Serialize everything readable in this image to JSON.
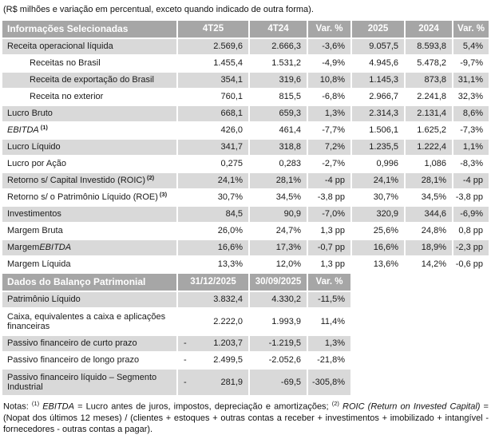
{
  "top_note": "(R$ milhões e variação em percentual, exceto quando indicado de outra forma).",
  "colors": {
    "header_bg": "#a6a6a6",
    "header_text": "#ffffff",
    "row_shade": "#d9d9d9",
    "body_text": "#1a1a1a"
  },
  "section1": {
    "title": "Informações Selecionadas",
    "columns": [
      "4T25",
      "4T24",
      "Var. %",
      "2025",
      "2024",
      "Var. %"
    ],
    "rows": [
      {
        "parts": [
          {
            "t": "Receita operacional líquida"
          }
        ],
        "values": [
          "2.569,6",
          "2.666,3",
          "-3,6%",
          "9.057,5",
          "8.593,8",
          "5,4%"
        ],
        "shade": true
      },
      {
        "parts": [
          {
            "t": "Receitas no Brasil"
          }
        ],
        "indent": true,
        "values": [
          "1.455,4",
          "1.531,2",
          "-4,9%",
          "4.945,6",
          "5.478,2",
          "-9,7%"
        ]
      },
      {
        "parts": [
          {
            "t": "Receita de exportação do Brasil"
          }
        ],
        "indent": true,
        "values": [
          "354,1",
          "319,6",
          "10,8%",
          "1.145,3",
          "873,8",
          "31,1%"
        ],
        "shade": true
      },
      {
        "parts": [
          {
            "t": "Receita no exterior"
          }
        ],
        "indent": true,
        "values": [
          "760,1",
          "815,5",
          "-6,8%",
          "2.966,7",
          "2.241,8",
          "32,3%"
        ]
      },
      {
        "parts": [
          {
            "t": "Lucro Bruto"
          }
        ],
        "values": [
          "668,1",
          "659,3",
          "1,3%",
          "2.314,3",
          "2.131,4",
          "8,6%"
        ],
        "shade": true
      },
      {
        "parts": [
          {
            "t": "EBITDA",
            "i": true
          }
        ],
        "sup": "(1)",
        "values": [
          "426,0",
          "461,4",
          "-7,7%",
          "1.506,1",
          "1.625,2",
          "-7,3%"
        ]
      },
      {
        "parts": [
          {
            "t": "Lucro Líquido"
          }
        ],
        "values": [
          "341,7",
          "318,8",
          "7,2%",
          "1.235,5",
          "1.222,4",
          "1,1%"
        ],
        "shade": true
      },
      {
        "parts": [
          {
            "t": "Lucro por Ação"
          }
        ],
        "values": [
          "0,275",
          "0,283",
          "-2,7%",
          "0,996",
          "1,086",
          "-8,3%"
        ]
      },
      {
        "parts": [
          {
            "t": "Retorno s/ Capital Investido (ROIC)"
          }
        ],
        "sup": "(2)",
        "values": [
          "24,1%",
          "28,1%",
          "-4 pp",
          "24,1%",
          "28,1%",
          "-4 pp"
        ],
        "shade": true
      },
      {
        "parts": [
          {
            "t": "Retorno s/ o Patrimônio Líquido (ROE)"
          }
        ],
        "sup": "(3)",
        "values": [
          "30,7%",
          "34,5%",
          "-3,8 pp",
          "30,7%",
          "34,5%",
          "-3,8 pp"
        ]
      },
      {
        "parts": [
          {
            "t": "Investimentos"
          }
        ],
        "values": [
          "84,5",
          "90,9",
          "-7,0%",
          "320,9",
          "344,6",
          "-6,9%"
        ],
        "shade": true
      },
      {
        "parts": [
          {
            "t": "Margem Bruta"
          }
        ],
        "values": [
          "26,0%",
          "24,7%",
          "1,3 pp",
          "25,6%",
          "24,8%",
          "0,8 pp"
        ]
      },
      {
        "parts": [
          {
            "t": "Margem ",
            "i": false
          },
          {
            "t": "EBITDA",
            "i": true
          }
        ],
        "values": [
          "16,6%",
          "17,3%",
          "-0,7 pp",
          "16,6%",
          "18,9%",
          "-2,3 pp"
        ],
        "shade": true
      },
      {
        "parts": [
          {
            "t": "Margem Líquida"
          }
        ],
        "values": [
          "13,3%",
          "12,0%",
          "1,3 pp",
          "13,6%",
          "14,2%",
          "-0,6 pp"
        ]
      }
    ]
  },
  "section2": {
    "title": "Dados do Balanço Patrimonial",
    "columns": [
      "31/12/2025",
      "30/09/2025",
      "Var. %"
    ],
    "rows": [
      {
        "parts": [
          {
            "t": "Patrimônio Líquido"
          }
        ],
        "values": [
          "3.832,4",
          "4.330,2",
          "-11,5%"
        ],
        "shade": true
      },
      {
        "parts": [
          {
            "t": "Caixa, equivalentes a caixa e aplicações financeiras"
          }
        ],
        "values": [
          "2.222,0",
          "1.993,9",
          "11,4%"
        ],
        "tall": true
      },
      {
        "parts": [
          {
            "t": "Passivo financeiro de curto prazo"
          }
        ],
        "minus": "-",
        "values": [
          "1.203,7",
          "-1.219,5",
          "1,3%"
        ],
        "shade": true
      },
      {
        "parts": [
          {
            "t": "Passivo financeiro de longo prazo"
          }
        ],
        "minus": "-",
        "values": [
          "2.499,5",
          "-2.052,6",
          "-21,8%"
        ]
      },
      {
        "parts": [
          {
            "t": "Passivo financeiro líquido – Segmento Industrial"
          }
        ],
        "minus": "-",
        "values": [
          "281,9",
          "-69,5",
          "-305,8%"
        ],
        "shade": true,
        "tall": true
      }
    ]
  },
  "footnotes": {
    "segments": [
      {
        "t": "Notas: "
      },
      {
        "t": "(1)",
        "sup": true
      },
      {
        "t": " "
      },
      {
        "t": "EBITDA",
        "i": true
      },
      {
        "t": " = Lucro antes de juros, impostos, depreciação e amortizações; "
      },
      {
        "t": "(2)",
        "sup": true
      },
      {
        "t": " "
      },
      {
        "t": "ROIC (Return on Invested Capital)",
        "i": true
      },
      {
        "t": " = (Nopat dos últimos 12 meses) / (clientes + estoques + outras contas a receber + investimentos + imobilizado + intangível - fornecedores - outras contas a pagar)."
      }
    ]
  }
}
